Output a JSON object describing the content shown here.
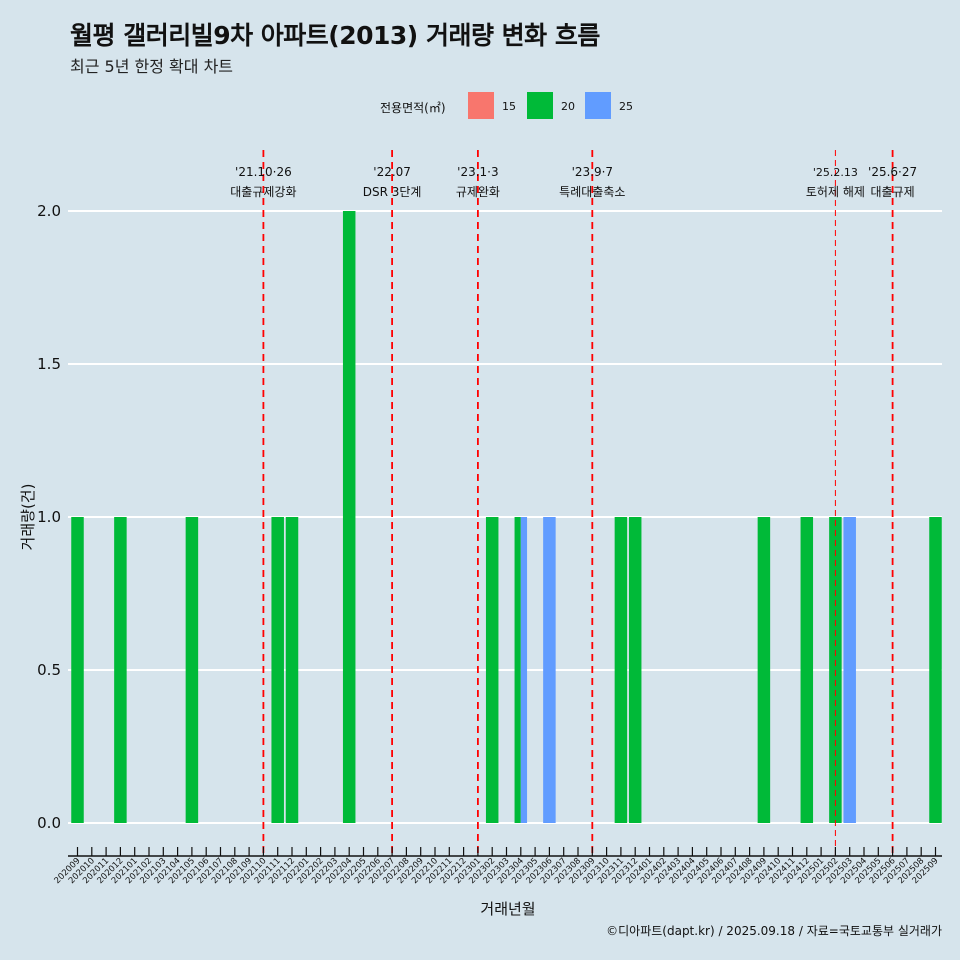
{
  "title": "월평 갤러리빌9차 아파트(2013) 거래량 변화 흐름",
  "subtitle": "최근 5년 한정 확대 차트",
  "caption": "©디아파트(dapt.kr) / 2025.09.18 / 자료=국토교통부 실거래가",
  "colors": {
    "background": "#d6e4ec",
    "s15": "#f8766d",
    "s20": "#00ba38",
    "s25": "#619cff",
    "event": "#ff0000"
  },
  "chart_data": {
    "type": "bar",
    "xlabel": "거래년월",
    "ylabel": "거래량(건)",
    "ylim": [
      0,
      2
    ],
    "yticks": [
      "0.0",
      "0.5",
      "1.0",
      "1.5",
      "2.0"
    ],
    "legend": {
      "title": "전용면적(㎡)",
      "position": "top",
      "entries": [
        "15",
        "20",
        "25"
      ]
    },
    "categories": [
      "202009",
      "202010",
      "202011",
      "202012",
      "202101",
      "202102",
      "202103",
      "202104",
      "202105",
      "202106",
      "202107",
      "202108",
      "202109",
      "202110",
      "202111",
      "202112",
      "202201",
      "202202",
      "202203",
      "202204",
      "202205",
      "202206",
      "202207",
      "202208",
      "202209",
      "202210",
      "202211",
      "202212",
      "202301",
      "202302",
      "202303",
      "202304",
      "202305",
      "202306",
      "202307",
      "202308",
      "202309",
      "202310",
      "202311",
      "202312",
      "202401",
      "202402",
      "202403",
      "202404",
      "202405",
      "202406",
      "202407",
      "202408",
      "202409",
      "202410",
      "202411",
      "202412",
      "202501",
      "202502",
      "202503",
      "202504",
      "202505",
      "202506",
      "202507",
      "202508",
      "202509"
    ],
    "series": [
      {
        "name": "15",
        "points": []
      },
      {
        "name": "20",
        "points": [
          {
            "x": "202009",
            "y": 1
          },
          {
            "x": "202012",
            "y": 1
          },
          {
            "x": "202105",
            "y": 1
          },
          {
            "x": "202111",
            "y": 1
          },
          {
            "x": "202112",
            "y": 1
          },
          {
            "x": "202204",
            "y": 2
          },
          {
            "x": "202302",
            "y": 1
          },
          {
            "x": "202304",
            "y": 1
          },
          {
            "x": "202311",
            "y": 1
          },
          {
            "x": "202312",
            "y": 1
          },
          {
            "x": "202409",
            "y": 1
          },
          {
            "x": "202412",
            "y": 1
          },
          {
            "x": "202502",
            "y": 1
          },
          {
            "x": "202509",
            "y": 1
          }
        ]
      },
      {
        "name": "25",
        "points": [
          {
            "x": "202304",
            "y": 1
          },
          {
            "x": "202306",
            "y": 1
          },
          {
            "x": "202503",
            "y": 1
          }
        ]
      }
    ],
    "events": [
      {
        "x": "202110",
        "line1": "'21.10·26",
        "line2": "대출규제강화",
        "style": "dashed"
      },
      {
        "x": "202207",
        "line1": "'22.07",
        "line2": "DSR 3단계",
        "style": "dashed"
      },
      {
        "x": "202301",
        "line1": "'23.1·3",
        "line2": "규제완화",
        "style": "dashed"
      },
      {
        "x": "202309",
        "line1": "'23.9·7",
        "line2": "특례대출축소",
        "style": "dashed"
      },
      {
        "x": "202502",
        "line1": "'25.2.13",
        "line2": "토허제 해제",
        "style": "thin"
      },
      {
        "x": "202506",
        "line1": "'25.6·27",
        "line2": "대출규제",
        "style": "dashed"
      }
    ]
  }
}
